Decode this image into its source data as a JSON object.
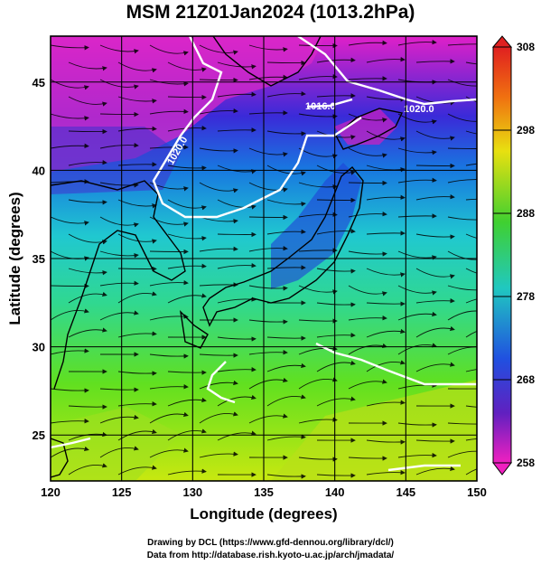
{
  "title": "MSM 21Z01Jan2024 (1013.2hPa)",
  "axes": {
    "xlabel": "Longitude (degrees)",
    "ylabel": "Latitude  (degrees)",
    "xlim": [
      120,
      150
    ],
    "ylim": [
      22.4,
      47.6
    ],
    "xticks": [
      "120",
      "125",
      "130",
      "135",
      "140",
      "145",
      "150"
    ],
    "yticks": [
      "25",
      "30",
      "35",
      "40",
      "45"
    ]
  },
  "colorbar": {
    "ticks": [
      "308",
      "298",
      "288",
      "278",
      "268",
      "258"
    ],
    "range": [
      258,
      308
    ]
  },
  "contour_labels": [
    "1020.0",
    "1016.0",
    "1020.0"
  ],
  "footer": {
    "line1": "Drawing by DCL (https://www.gfd-dennou.org/library/dcl/)",
    "line2": "Data from http://database.rish.kyoto-u.ac.jp/arch/jmadata/"
  }
}
